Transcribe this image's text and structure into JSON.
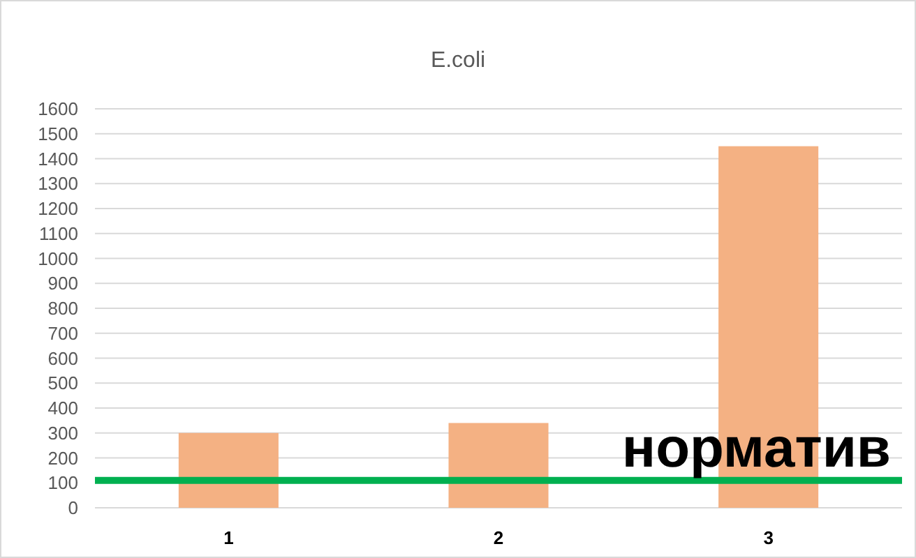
{
  "chart_data": {
    "type": "bar",
    "title": "E.coli",
    "categories": [
      "1",
      "2",
      "3"
    ],
    "values": [
      300,
      340,
      1450
    ],
    "color": "#f4b183",
    "ylim": [
      0,
      1600
    ],
    "yticks": [
      0,
      100,
      200,
      300,
      400,
      500,
      600,
      700,
      800,
      900,
      1000,
      1100,
      1200,
      1300,
      1400,
      1500,
      1600
    ],
    "grid": "y",
    "ref_lines": [
      {
        "axis": "y",
        "value": 110,
        "label": "норматив",
        "color": "#00b050"
      }
    ]
  }
}
